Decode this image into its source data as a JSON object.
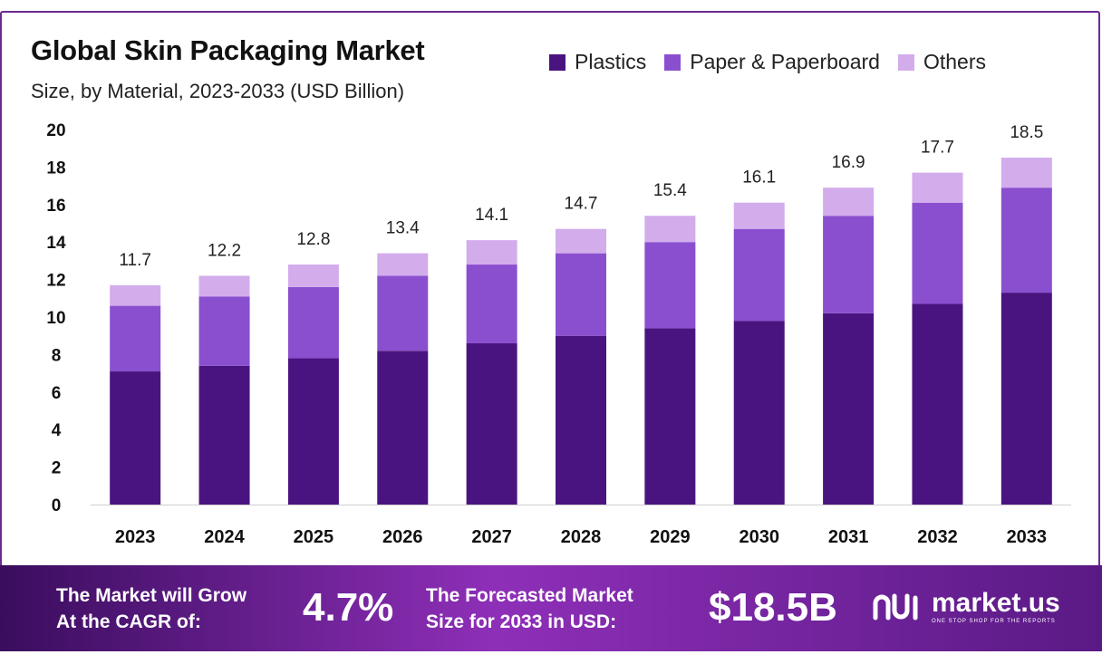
{
  "header": {
    "title": "Global Skin Packaging Market",
    "subtitle": "Size, by Material, 2023-2033 (USD Billion)"
  },
  "legend": [
    {
      "label": "Plastics",
      "color": "#4a1480"
    },
    {
      "label": "Paper & Paperboard",
      "color": "#8a4fcf"
    },
    {
      "label": "Others",
      "color": "#d3acec"
    }
  ],
  "chart_data": {
    "type": "bar",
    "stacked": true,
    "categories": [
      "2023",
      "2024",
      "2025",
      "2026",
      "2027",
      "2028",
      "2029",
      "2030",
      "2031",
      "2032",
      "2033"
    ],
    "series": [
      {
        "name": "Plastics",
        "values": [
          7.1,
          7.4,
          7.8,
          8.2,
          8.6,
          9.0,
          9.4,
          9.8,
          10.2,
          10.7,
          11.3
        ]
      },
      {
        "name": "Paper & Paperboard",
        "values": [
          3.5,
          3.7,
          3.8,
          4.0,
          4.2,
          4.4,
          4.6,
          4.9,
          5.2,
          5.4,
          5.6
        ]
      },
      {
        "name": "Others",
        "values": [
          1.1,
          1.1,
          1.2,
          1.2,
          1.3,
          1.3,
          1.4,
          1.4,
          1.5,
          1.6,
          1.6
        ]
      }
    ],
    "totals": [
      "11.7",
      "12.2",
      "12.8",
      "13.4",
      "14.1",
      "14.7",
      "15.4",
      "16.1",
      "16.9",
      "17.7",
      "18.5"
    ],
    "yticks": [
      "0",
      "2",
      "4",
      "6",
      "8",
      "10",
      "12",
      "14",
      "16",
      "18",
      "20"
    ],
    "ylim": [
      0,
      20
    ],
    "grid": false,
    "legend_position": "top-right",
    "title": "Global Skin Packaging Market",
    "xlabel": "",
    "ylabel": ""
  },
  "footer": {
    "cagr_line1": "The Market will Grow",
    "cagr_line2": "At the CAGR of:",
    "cagr_value": "4.7%",
    "forecast_line1": "The Forecasted Market",
    "forecast_line2": "Size for 2033 in USD:",
    "forecast_value": "$18.5B",
    "brand_name": "market.us",
    "brand_tagline": "ONE STOP SHOP FOR THE REPORTS"
  }
}
